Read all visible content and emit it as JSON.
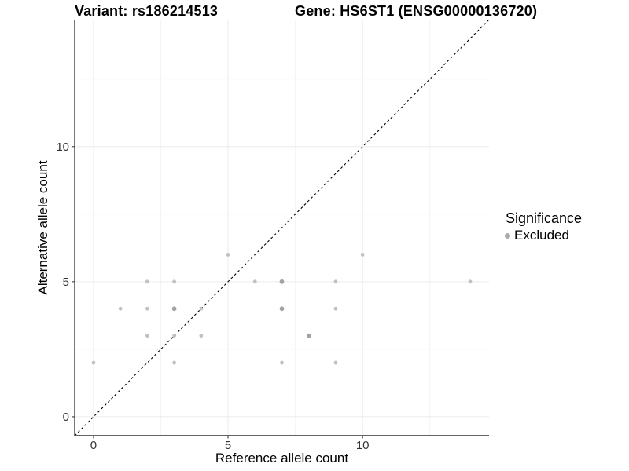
{
  "title": {
    "variant": "Variant: rs186214513",
    "gene": "Gene: HS6ST1 (ENSG00000136720)"
  },
  "legend": {
    "title": "Significance",
    "items": [
      {
        "label": "Excluded",
        "marker": "dot-icon",
        "marker_color": "#ababab"
      }
    ],
    "position": "right"
  },
  "colors": {
    "point_light": "#c1c1c1",
    "point_dark": "#a2a2a2",
    "grid_major": "#ececec",
    "grid_minor": "#f4f4f4",
    "axis_line": "#4d4d4d",
    "tick_label": "#333333",
    "identity_line": "#000000",
    "background": "#ffffff"
  },
  "chart_data": {
    "type": "scatter",
    "title": "Variant: rs186214513   Gene: HS6ST1 (ENSG00000136720)",
    "xlabel": "Reference allele count",
    "ylabel": "Alternative allele count",
    "xlim": [
      -0.7,
      14.7
    ],
    "ylim": [
      -0.7,
      14.7
    ],
    "x_major_ticks": [
      0,
      5,
      10
    ],
    "y_major_ticks": [
      0,
      5,
      10
    ],
    "x_minor_gridlines": [
      2.5,
      7.5,
      12.5
    ],
    "y_minor_gridlines": [
      2.5,
      7.5,
      12.5
    ],
    "grid": true,
    "legend_position": "right",
    "identity_line": {
      "style": "dashed",
      "from": [
        -0.7,
        -0.7
      ],
      "to": [
        14.7,
        14.7
      ]
    },
    "series": [
      {
        "name": "Excluded",
        "points": [
          {
            "x": 0,
            "y": 2,
            "overlap": false
          },
          {
            "x": 1,
            "y": 4,
            "overlap": false
          },
          {
            "x": 2,
            "y": 3,
            "overlap": false
          },
          {
            "x": 2,
            "y": 4,
            "overlap": false
          },
          {
            "x": 2,
            "y": 5,
            "overlap": false
          },
          {
            "x": 3,
            "y": 2,
            "overlap": false
          },
          {
            "x": 3,
            "y": 3,
            "overlap": false
          },
          {
            "x": 3,
            "y": 4,
            "overlap": true
          },
          {
            "x": 3,
            "y": 5,
            "overlap": false
          },
          {
            "x": 4,
            "y": 3,
            "overlap": false
          },
          {
            "x": 4,
            "y": 4,
            "overlap": false
          },
          {
            "x": 5,
            "y": 6,
            "overlap": false
          },
          {
            "x": 6,
            "y": 5,
            "overlap": false
          },
          {
            "x": 7,
            "y": 2,
            "overlap": false
          },
          {
            "x": 7,
            "y": 4,
            "overlap": true
          },
          {
            "x": 7,
            "y": 5,
            "overlap": true
          },
          {
            "x": 8,
            "y": 3,
            "overlap": true
          },
          {
            "x": 9,
            "y": 2,
            "overlap": false
          },
          {
            "x": 9,
            "y": 4,
            "overlap": false
          },
          {
            "x": 9,
            "y": 5,
            "overlap": false
          },
          {
            "x": 10,
            "y": 6,
            "overlap": false
          },
          {
            "x": 14,
            "y": 5,
            "overlap": false
          }
        ]
      }
    ]
  }
}
